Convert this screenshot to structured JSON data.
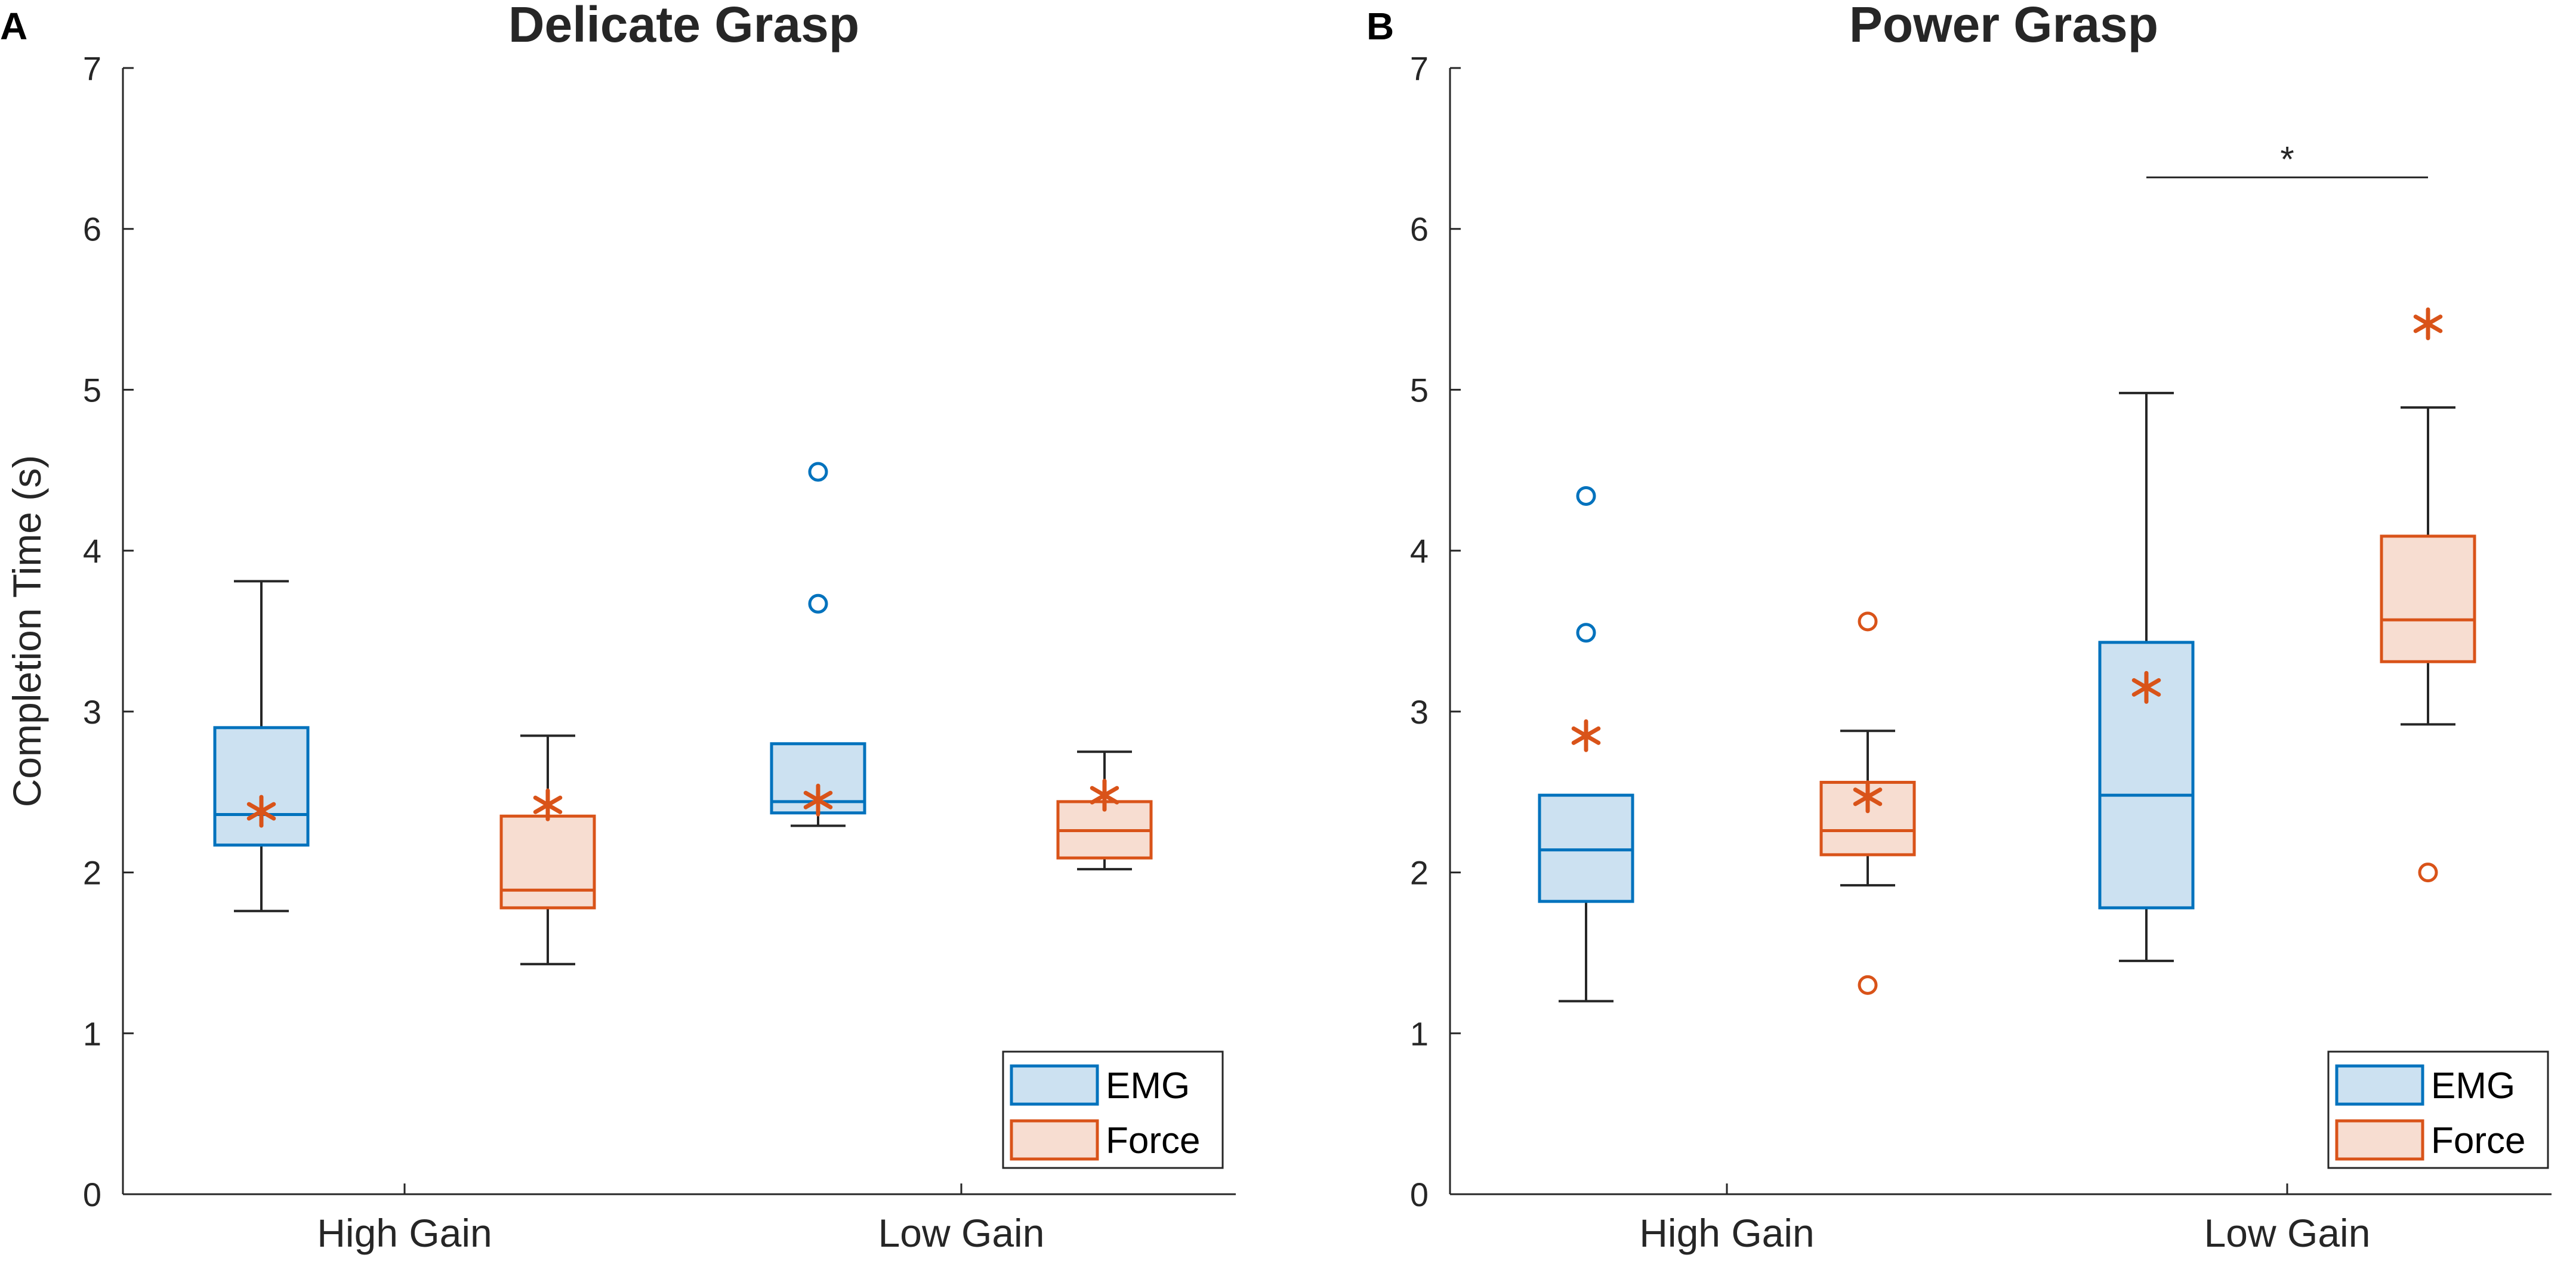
{
  "chart_data": [
    {
      "type": "box",
      "panel": "A",
      "title": "Delicate Grasp",
      "xlabel": "",
      "ylabel": "Completion Time (s)",
      "ylim": [
        0,
        7
      ],
      "yticks": [
        0,
        1,
        2,
        3,
        4,
        5,
        6,
        7
      ],
      "categories": [
        "High Gain",
        "Low Gain"
      ],
      "legend": {
        "position": "bottom-right",
        "entries": [
          "EMG",
          "Force"
        ]
      },
      "colors": {
        "EMG_edge": "#0072BD",
        "EMG_fill": "#CCE1F1",
        "Force_edge": "#D95319",
        "Force_fill": "#F7DDD1",
        "whisker": "#262626"
      },
      "series": [
        {
          "name": "EMG",
          "boxes": [
            {
              "category": "High Gain",
              "whisker_low": 1.76,
              "q1": 2.17,
              "median": 2.36,
              "q3": 2.9,
              "whisker_high": 3.81,
              "mean": 2.38,
              "outliers": []
            },
            {
              "category": "Low Gain",
              "whisker_low": 2.29,
              "q1": 2.37,
              "median": 2.44,
              "q3": 2.8,
              "whisker_high": 2.8,
              "mean": 2.45,
              "outliers": [
                3.67,
                4.49
              ]
            }
          ]
        },
        {
          "name": "Force",
          "boxes": [
            {
              "category": "High Gain",
              "whisker_low": 1.43,
              "q1": 1.78,
              "median": 1.89,
              "q3": 2.35,
              "whisker_high": 2.85,
              "mean": 2.42,
              "outliers": []
            },
            {
              "category": "Low Gain",
              "whisker_low": 2.02,
              "q1": 2.09,
              "median": 2.26,
              "q3": 2.44,
              "whisker_high": 2.75,
              "mean": 2.48,
              "outliers": []
            }
          ]
        }
      ],
      "annotations": []
    },
    {
      "type": "box",
      "panel": "B",
      "title": "Power Grasp",
      "xlabel": "",
      "ylabel": "",
      "ylim": [
        0,
        7
      ],
      "yticks": [
        0,
        1,
        2,
        3,
        4,
        5,
        6,
        7
      ],
      "categories": [
        "High Gain",
        "Low Gain"
      ],
      "legend": {
        "position": "bottom-right",
        "entries": [
          "EMG",
          "Force"
        ]
      },
      "colors": {
        "EMG_edge": "#0072BD",
        "EMG_fill": "#CCE1F1",
        "Force_edge": "#D95319",
        "Force_fill": "#F7DDD1",
        "whisker": "#262626"
      },
      "series": [
        {
          "name": "EMG",
          "boxes": [
            {
              "category": "High Gain",
              "whisker_low": 1.2,
              "q1": 1.82,
              "median": 2.14,
              "q3": 2.48,
              "whisker_high": 2.48,
              "mean": 2.85,
              "outliers": [
                3.49,
                4.34
              ]
            },
            {
              "category": "Low Gain",
              "whisker_low": 1.45,
              "q1": 1.78,
              "median": 2.48,
              "q3": 3.43,
              "whisker_high": 4.98,
              "mean": 3.15,
              "outliers": []
            }
          ]
        },
        {
          "name": "Force",
          "boxes": [
            {
              "category": "High Gain",
              "whisker_low": 1.92,
              "q1": 2.11,
              "median": 2.26,
              "q3": 2.56,
              "whisker_high": 2.88,
              "mean": 2.47,
              "outliers": [
                1.3,
                3.56
              ]
            },
            {
              "category": "Low Gain",
              "whisker_low": 2.92,
              "q1": 3.31,
              "median": 3.57,
              "q3": 4.09,
              "whisker_high": 4.89,
              "mean": 5.41,
              "outliers": [
                2.0
              ]
            }
          ]
        }
      ],
      "annotations": [
        {
          "type": "significance",
          "label": "*",
          "y": 6.32,
          "between": "Low Gain EMG and Low Gain Force"
        }
      ]
    }
  ]
}
